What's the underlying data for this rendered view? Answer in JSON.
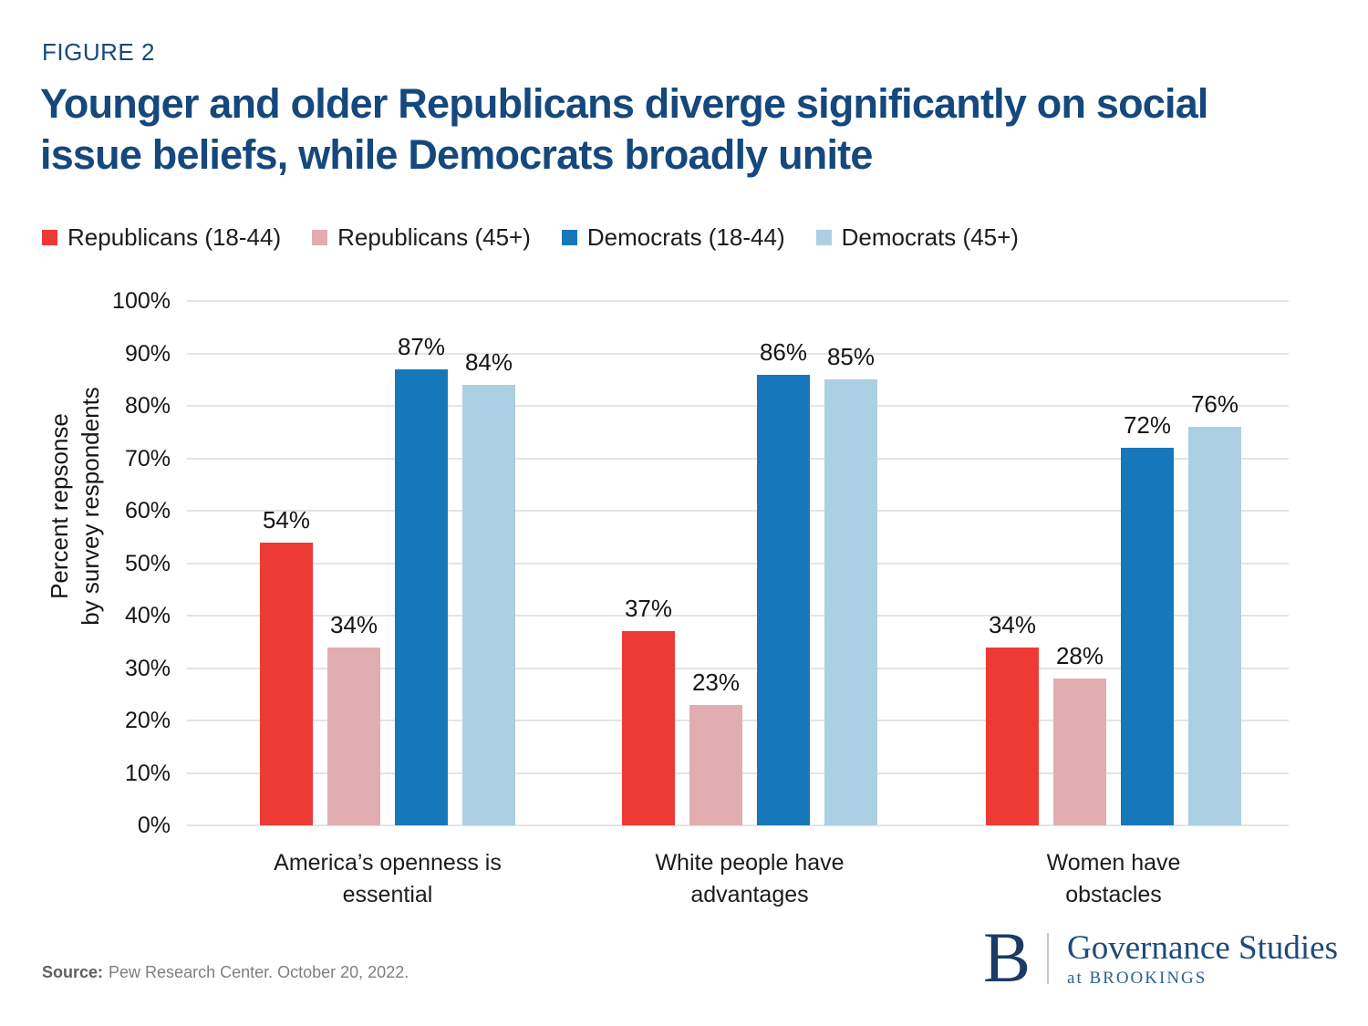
{
  "page": {
    "figure_label": "FIGURE 2",
    "title_line1": "Younger and older Republicans diverge significantly on social",
    "title_line2": "issue beliefs, while Democrats broadly unite"
  },
  "chart_data": {
    "type": "bar",
    "title": "Younger and older Republicans diverge significantly on social issue beliefs, while Democrats broadly unite",
    "categories": [
      "America’s openness is essential",
      "White people have advantages",
      "Women have obstacles"
    ],
    "category_lines": [
      [
        "America’s openness is",
        "essential"
      ],
      [
        "White people have",
        "advantages"
      ],
      [
        "Women have",
        "obstacles"
      ]
    ],
    "series": [
      {
        "name": "Republicans (18-44)",
        "color": "#ee3a35",
        "values": [
          54,
          37,
          34
        ]
      },
      {
        "name": "Republicans (45+)",
        "color": "#e2adb0",
        "values": [
          34,
          23,
          28
        ]
      },
      {
        "name": "Democrats (18-44)",
        "color": "#1678bb",
        "values": [
          87,
          86,
          72
        ]
      },
      {
        "name": "Democrats (45+)",
        "color": "#abcfe3",
        "values": [
          84,
          85,
          76
        ]
      }
    ],
    "value_suffix": "%",
    "ylabel": "Percent repsonse by survey respondents",
    "ylabel_lines": [
      "Percent repsonse",
      "by survey respondents"
    ],
    "ylim": [
      0,
      100
    ],
    "ytick_step": 10,
    "ytick_suffix": "%",
    "yticks": [
      0,
      10,
      20,
      30,
      40,
      50,
      60,
      70,
      80,
      90,
      100
    ],
    "grid": true,
    "legend_position": "top"
  },
  "source": {
    "label": "Source:",
    "text": "Pew Research Center. October 20, 2022."
  },
  "logo": {
    "monogram": "B",
    "name": "Governance Studies",
    "subtitle": "at BROOKINGS"
  }
}
